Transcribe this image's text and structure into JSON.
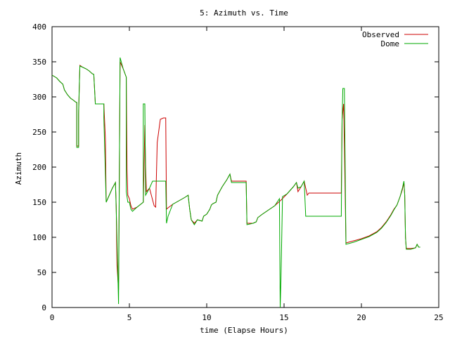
{
  "chart_data": {
    "type": "line",
    "title": "5: Azimuth vs. Time",
    "xlabel": "time (Elapse Hours)",
    "ylabel": "Azimuth",
    "xlim": [
      0,
      25
    ],
    "ylim": [
      0,
      400
    ],
    "xticks": [
      0,
      5,
      10,
      15,
      20,
      25
    ],
    "yticks": [
      0,
      50,
      100,
      150,
      200,
      250,
      300,
      350,
      400
    ],
    "grid": false,
    "legend": "top-right",
    "series": [
      {
        "name": "Observed",
        "color": "#cc0000",
        "points": [
          [
            0.0,
            331
          ],
          [
            0.3,
            327
          ],
          [
            0.5,
            322
          ],
          [
            0.7,
            318
          ],
          [
            0.8,
            310
          ],
          [
            1.0,
            303
          ],
          [
            1.2,
            298
          ],
          [
            1.4,
            295
          ],
          [
            1.5,
            293
          ],
          [
            1.6,
            292
          ],
          [
            1.6,
            230
          ],
          [
            1.72,
            230
          ],
          [
            1.72,
            275
          ],
          [
            1.8,
            345
          ],
          [
            2.0,
            342
          ],
          [
            2.2,
            340
          ],
          [
            2.4,
            337
          ],
          [
            2.6,
            333
          ],
          [
            2.7,
            332
          ],
          [
            2.8,
            290
          ],
          [
            3.1,
            290
          ],
          [
            3.35,
            290
          ],
          [
            3.45,
            240
          ],
          [
            3.5,
            150
          ],
          [
            3.7,
            160
          ],
          [
            3.9,
            170
          ],
          [
            4.1,
            178
          ],
          [
            4.15,
            145
          ],
          [
            4.2,
            60
          ],
          [
            4.3,
            25
          ],
          [
            4.4,
            350
          ],
          [
            4.6,
            340
          ],
          [
            4.8,
            328
          ],
          [
            4.85,
            195
          ],
          [
            4.9,
            160
          ],
          [
            5.0,
            155
          ],
          [
            5.05,
            150
          ],
          [
            5.1,
            145
          ],
          [
            5.2,
            140
          ],
          [
            5.5,
            143
          ],
          [
            5.9,
            150
          ],
          [
            5.95,
            200
          ],
          [
            6.0,
            260
          ],
          [
            6.05,
            200
          ],
          [
            6.1,
            165
          ],
          [
            6.3,
            170
          ],
          [
            6.6,
            145
          ],
          [
            6.7,
            143
          ],
          [
            6.8,
            235
          ],
          [
            7.0,
            268
          ],
          [
            7.2,
            270
          ],
          [
            7.35,
            270
          ],
          [
            7.4,
            140
          ],
          [
            7.5,
            142
          ],
          [
            7.8,
            147
          ],
          [
            8.2,
            152
          ],
          [
            8.6,
            157
          ],
          [
            8.8,
            160
          ],
          [
            8.9,
            140
          ],
          [
            9.0,
            125
          ],
          [
            9.2,
            120
          ],
          [
            9.4,
            125
          ],
          [
            9.7,
            123
          ],
          [
            9.8,
            130
          ],
          [
            10.0,
            133
          ],
          [
            10.2,
            140
          ],
          [
            10.3,
            146
          ],
          [
            10.4,
            148
          ],
          [
            10.6,
            150
          ],
          [
            10.7,
            160
          ],
          [
            11.0,
            172
          ],
          [
            11.3,
            182
          ],
          [
            11.5,
            190
          ],
          [
            11.6,
            180
          ],
          [
            12.0,
            180
          ],
          [
            12.3,
            180
          ],
          [
            12.55,
            180
          ],
          [
            12.6,
            120
          ],
          [
            13.0,
            120
          ],
          [
            13.2,
            122
          ],
          [
            13.3,
            128
          ],
          [
            13.6,
            133
          ],
          [
            14.0,
            139
          ],
          [
            14.4,
            145
          ],
          [
            14.8,
            153
          ],
          [
            15.2,
            162
          ],
          [
            15.6,
            172
          ],
          [
            15.8,
            178
          ],
          [
            15.9,
            165
          ],
          [
            16.1,
            172
          ],
          [
            16.3,
            180
          ],
          [
            16.5,
            160
          ],
          [
            16.6,
            163
          ],
          [
            17.5,
            163
          ],
          [
            18.5,
            163
          ],
          [
            18.7,
            163
          ],
          [
            18.75,
            268
          ],
          [
            18.85,
            290
          ],
          [
            18.9,
            230
          ],
          [
            19.0,
            92
          ],
          [
            19.5,
            95
          ],
          [
            20.0,
            98
          ],
          [
            20.5,
            102
          ],
          [
            21.0,
            108
          ],
          [
            21.3,
            114
          ],
          [
            21.6,
            122
          ],
          [
            21.9,
            132
          ],
          [
            22.1,
            140
          ],
          [
            22.3,
            146
          ],
          [
            22.5,
            158
          ],
          [
            22.65,
            168
          ],
          [
            22.75,
            178
          ],
          [
            22.8,
            160
          ],
          [
            22.85,
            100
          ],
          [
            22.9,
            84
          ],
          [
            23.2,
            84
          ],
          [
            23.5,
            85
          ],
          [
            23.6,
            90
          ],
          [
            23.7,
            86
          ],
          [
            23.8,
            86
          ]
        ]
      },
      {
        "name": "Dome",
        "color": "#00aa00",
        "points": [
          [
            0.0,
            331
          ],
          [
            0.3,
            327
          ],
          [
            0.5,
            322
          ],
          [
            0.7,
            318
          ],
          [
            0.8,
            310
          ],
          [
            1.0,
            303
          ],
          [
            1.2,
            298
          ],
          [
            1.4,
            295
          ],
          [
            1.5,
            293
          ],
          [
            1.6,
            292
          ],
          [
            1.6,
            228
          ],
          [
            1.72,
            228
          ],
          [
            1.72,
            280
          ],
          [
            1.8,
            344
          ],
          [
            2.0,
            342
          ],
          [
            2.2,
            340
          ],
          [
            2.4,
            337
          ],
          [
            2.6,
            333
          ],
          [
            2.7,
            332
          ],
          [
            2.8,
            290
          ],
          [
            3.1,
            290
          ],
          [
            3.35,
            290
          ],
          [
            3.35,
            270
          ],
          [
            3.5,
            150
          ],
          [
            3.7,
            160
          ],
          [
            3.9,
            170
          ],
          [
            4.1,
            178
          ],
          [
            4.2,
            100
          ],
          [
            4.3,
            5
          ],
          [
            4.4,
            356
          ],
          [
            4.6,
            340
          ],
          [
            4.8,
            328
          ],
          [
            4.8,
            165
          ],
          [
            4.9,
            150
          ],
          [
            5.0,
            150
          ],
          [
            5.05,
            145
          ],
          [
            5.1,
            140
          ],
          [
            5.2,
            137
          ],
          [
            5.5,
            143
          ],
          [
            5.9,
            150
          ],
          [
            5.9,
            290
          ],
          [
            6.0,
            290
          ],
          [
            6.05,
            160
          ],
          [
            6.3,
            170
          ],
          [
            6.5,
            180
          ],
          [
            7.0,
            180
          ],
          [
            7.35,
            180
          ],
          [
            7.4,
            120
          ],
          [
            7.5,
            130
          ],
          [
            7.8,
            147
          ],
          [
            8.2,
            152
          ],
          [
            8.6,
            157
          ],
          [
            8.8,
            160
          ],
          [
            8.9,
            140
          ],
          [
            9.0,
            125
          ],
          [
            9.2,
            118
          ],
          [
            9.4,
            125
          ],
          [
            9.7,
            123
          ],
          [
            9.8,
            130
          ],
          [
            10.0,
            133
          ],
          [
            10.2,
            140
          ],
          [
            10.3,
            146
          ],
          [
            10.4,
            148
          ],
          [
            10.6,
            150
          ],
          [
            10.7,
            160
          ],
          [
            11.0,
            172
          ],
          [
            11.3,
            182
          ],
          [
            11.5,
            190
          ],
          [
            11.6,
            178
          ],
          [
            12.0,
            178
          ],
          [
            12.3,
            178
          ],
          [
            12.55,
            178
          ],
          [
            12.6,
            118
          ],
          [
            13.0,
            120
          ],
          [
            13.2,
            122
          ],
          [
            13.3,
            128
          ],
          [
            13.6,
            133
          ],
          [
            14.0,
            139
          ],
          [
            14.4,
            145
          ],
          [
            14.7,
            155
          ],
          [
            14.75,
            0
          ],
          [
            14.8,
            40
          ],
          [
            14.9,
            158
          ],
          [
            15.2,
            162
          ],
          [
            15.6,
            172
          ],
          [
            15.8,
            178
          ],
          [
            15.9,
            170
          ],
          [
            16.1,
            172
          ],
          [
            16.3,
            180
          ],
          [
            16.4,
            130
          ],
          [
            17.0,
            130
          ],
          [
            18.0,
            130
          ],
          [
            18.7,
            130
          ],
          [
            18.75,
            265
          ],
          [
            18.8,
            312
          ],
          [
            18.9,
            312
          ],
          [
            19.0,
            90
          ],
          [
            19.5,
            93
          ],
          [
            20.0,
            97
          ],
          [
            20.5,
            101
          ],
          [
            21.0,
            107
          ],
          [
            21.3,
            113
          ],
          [
            21.6,
            121
          ],
          [
            21.9,
            131
          ],
          [
            22.1,
            139
          ],
          [
            22.3,
            146
          ],
          [
            22.5,
            158
          ],
          [
            22.65,
            170
          ],
          [
            22.75,
            180
          ],
          [
            22.8,
            160
          ],
          [
            22.85,
            100
          ],
          [
            22.9,
            83
          ],
          [
            23.2,
            83
          ],
          [
            23.5,
            85
          ],
          [
            23.6,
            90
          ],
          [
            23.7,
            86
          ],
          [
            23.8,
            86
          ]
        ]
      }
    ]
  }
}
